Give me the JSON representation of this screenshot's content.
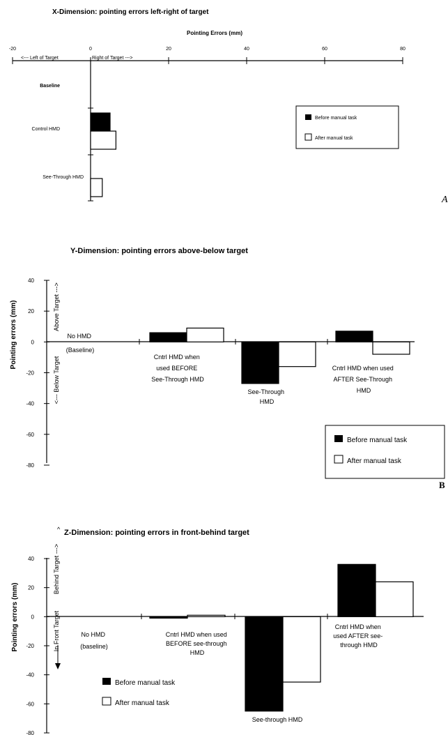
{
  "colors": {
    "before": "#000000",
    "after": "#ffffff",
    "axis": "#000000"
  },
  "panel_letters": [
    "A",
    "B"
  ],
  "chart_data": [
    {
      "type": "bar",
      "orientation": "horizontal",
      "title": "X-Dimension: pointing errors left-right of target",
      "xlabel": "Pointing Errors (mm)",
      "xlim": [
        -20,
        80
      ],
      "xticks": [
        "-20",
        "0",
        "20",
        "40",
        "60",
        "80"
      ],
      "direction_left": "<--- Left of Target",
      "direction_right": "Right of Target --->",
      "categories": [
        "Baseline",
        "Control HMD",
        "See-Through HMD"
      ],
      "series": [
        {
          "name": "Before manual task",
          "values": [
            0,
            5,
            0
          ]
        },
        {
          "name": "After manual task",
          "values": [
            0,
            6.5,
            3
          ]
        }
      ],
      "legend": [
        "Before manual task",
        "After manual task"
      ],
      "legend_position": "right",
      "grid": false
    },
    {
      "type": "bar",
      "title": "Y-Dimension: pointing errors above-below target",
      "ylabel": "Pointing errors (mm)",
      "ylim": [
        -80,
        40
      ],
      "yticks": [
        "40",
        "20",
        "0",
        "-20",
        "-40",
        "-60",
        "-80"
      ],
      "direction_up": "Above Target --->",
      "direction_down": "<--- Below Target",
      "categories": [
        [
          "No HMD",
          "(Baseline)"
        ],
        [
          "Cntrl HMD when",
          "used BEFORE",
          "See-Through HMD"
        ],
        [
          "See-Through",
          "HMD"
        ],
        [
          "Cntrl HMD when used",
          "AFTER See-Through",
          "HMD"
        ]
      ],
      "series": [
        {
          "name": "Before manual task",
          "values": [
            0,
            6,
            -27,
            7
          ]
        },
        {
          "name": "After manual task",
          "values": [
            0,
            9,
            -16,
            -8
          ]
        }
      ],
      "legend": [
        "Before manual task",
        "After manual task"
      ],
      "legend_position": "bottom-right",
      "grid": false
    },
    {
      "type": "bar",
      "title": "Z-Dimension: pointing errors in front-behind target",
      "ylabel": "Pointing errors (mm)",
      "ylim": [
        -80,
        40
      ],
      "yticks": [
        "40",
        "20",
        "0",
        "-20",
        "-40",
        "-60",
        "-80"
      ],
      "direction_up": "Behind Target --->",
      "direction_down": "In Front Target",
      "categories": [
        [
          "No HMD",
          "(baseline)"
        ],
        [
          "Cntrl HMD when used",
          "BEFORE see-through",
          "HMD"
        ],
        [
          "See-through HMD"
        ],
        [
          "Cntrl HMD when",
          "used AFTER see-",
          "through HMD"
        ]
      ],
      "series": [
        {
          "name": "Before manual task",
          "values": [
            0,
            -1,
            -65,
            36
          ]
        },
        {
          "name": "After manual task",
          "values": [
            0,
            1,
            -45,
            24
          ]
        }
      ],
      "legend": [
        "Before manual task",
        "After manual task"
      ],
      "legend_position": "bottom-left",
      "grid": false
    }
  ]
}
